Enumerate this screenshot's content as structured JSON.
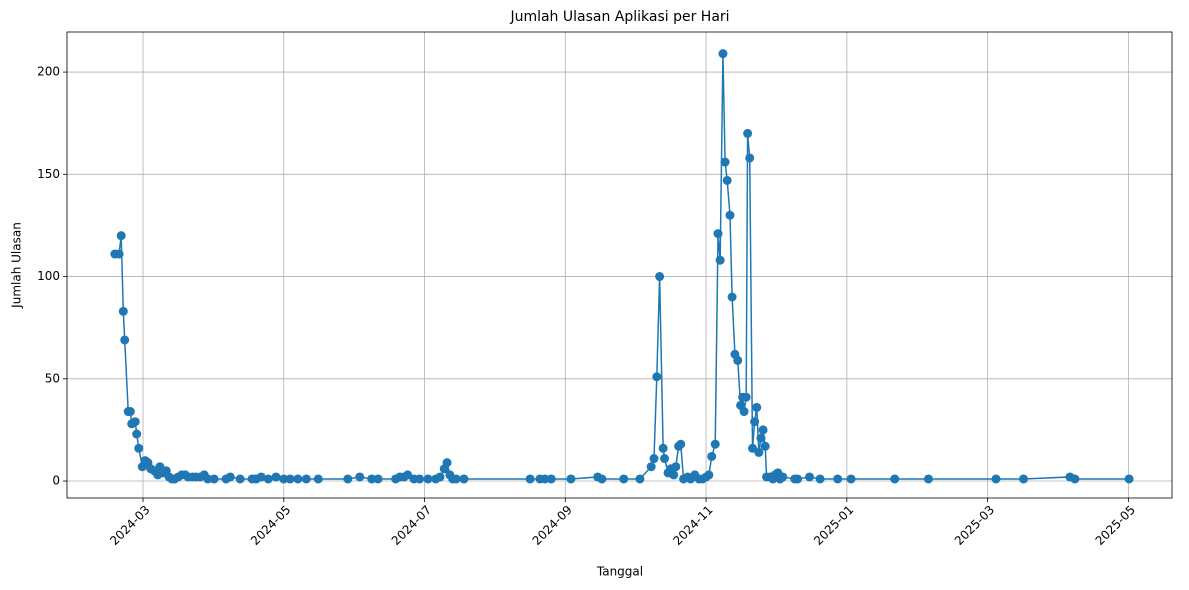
{
  "chart_data": {
    "type": "line",
    "title": "Jumlah Ulasan Aplikasi per Hari",
    "x_label": "Tanggal",
    "y_label": "Jumlah Ulasan",
    "color": "#1f77b4",
    "grid": true,
    "marker": "circle",
    "x": [
      -0.4,
      -0.34,
      -0.31,
      -0.28,
      -0.26,
      -0.21,
      -0.18,
      -0.16,
      -0.11,
      -0.09,
      -0.06,
      -0.01,
      0.03,
      0.07,
      0.11,
      0.16,
      0.21,
      0.24,
      0.28,
      0.33,
      0.37,
      0.41,
      0.45,
      0.5,
      0.55,
      0.6,
      0.64,
      0.7,
      0.75,
      0.81,
      0.87,
      0.92,
      1.01,
      1.18,
      1.24,
      1.38,
      1.55,
      1.61,
      1.68,
      1.78,
      1.89,
      2.0,
      2.09,
      2.2,
      2.32,
      2.49,
      2.91,
      3.08,
      3.25,
      3.34,
      3.59,
      3.65,
      3.71,
      3.76,
      3.85,
      3.93,
      4.05,
      4.16,
      4.22,
      4.28,
      4.32,
      4.36,
      4.4,
      4.45,
      4.56,
      5.5,
      5.64,
      5.71,
      5.8,
      6.08,
      6.46,
      6.52,
      6.83,
      7.06,
      7.22,
      7.26,
      7.3,
      7.34,
      7.39,
      7.41,
      7.46,
      7.5,
      7.54,
      7.57,
      7.61,
      7.64,
      7.68,
      7.74,
      7.78,
      7.84,
      7.9,
      7.95,
      8.0,
      8.04,
      8.08,
      8.13,
      8.17,
      8.2,
      8.24,
      8.27,
      8.3,
      8.34,
      8.37,
      8.41,
      8.45,
      8.49,
      8.52,
      8.54,
      8.57,
      8.59,
      8.62,
      8.66,
      8.69,
      8.72,
      8.75,
      8.78,
      8.81,
      8.84,
      8.86,
      8.91,
      8.95,
      8.98,
      9.02,
      9.05,
      9.09,
      9.26,
      9.3,
      9.47,
      9.62,
      9.87,
      10.06,
      10.68,
      11.16,
      12.12,
      12.51,
      13.17,
      13.24,
      14.01
    ],
    "values": [
      111,
      111,
      120,
      83,
      69,
      34,
      34,
      28,
      29,
      23,
      16,
      7,
      10,
      9,
      6,
      5,
      3,
      7,
      4,
      5,
      2,
      1,
      1,
      2,
      3,
      3,
      2,
      2,
      2,
      2,
      3,
      1,
      1,
      1,
      2,
      1,
      1,
      1,
      2,
      1,
      2,
      1,
      1,
      1,
      1,
      1,
      1,
      2,
      1,
      1,
      1,
      2,
      2,
      3,
      1,
      1,
      1,
      1,
      2,
      6,
      9,
      3,
      1,
      1,
      1,
      1,
      1,
      1,
      1,
      1,
      2,
      1,
      1,
      1,
      7,
      11,
      51,
      100,
      16,
      11,
      4,
      6,
      3,
      7,
      17,
      18,
      1,
      2,
      1,
      3,
      1,
      1,
      2,
      3,
      12,
      18,
      121,
      108,
      209,
      156,
      147,
      130,
      90,
      62,
      59,
      37,
      41,
      34,
      41,
      170,
      158,
      16,
      29,
      36,
      14,
      21,
      25,
      17,
      2,
      2,
      1,
      3,
      4,
      1,
      2,
      1,
      1,
      2,
      1,
      1,
      1,
      1,
      1,
      1,
      1,
      2,
      1,
      1
    ],
    "xlim": [
      -1.08,
      14.62
    ],
    "xticks": [
      {
        "value": 0,
        "label": "2024-03"
      },
      {
        "value": 2,
        "label": "2024-05"
      },
      {
        "value": 4,
        "label": "2024-07"
      },
      {
        "value": 6,
        "label": "2024-09"
      },
      {
        "value": 8,
        "label": "2024-11"
      },
      {
        "value": 10,
        "label": "2025-01"
      },
      {
        "value": 12,
        "label": "2025-03"
      },
      {
        "value": 14,
        "label": "2025-05"
      }
    ],
    "ylim": [
      -8.3,
      219.6
    ],
    "yticks": [
      0,
      50,
      100,
      150,
      200
    ]
  }
}
